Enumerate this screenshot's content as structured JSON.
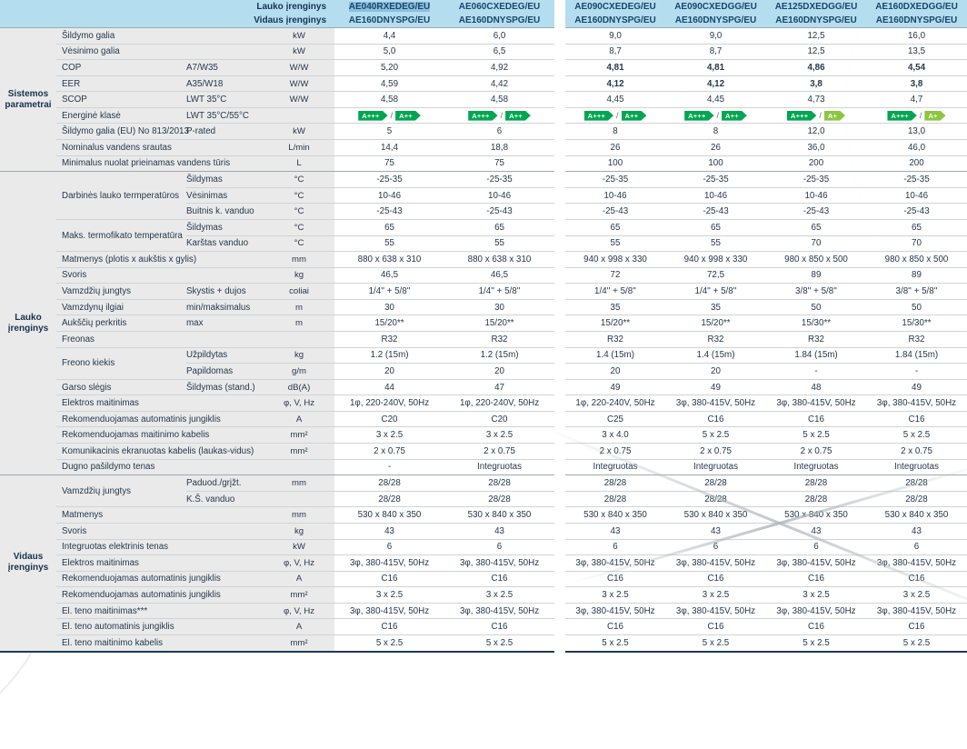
{
  "colors": {
    "header_bg": "#b5ddf0",
    "selected_model_bg": "#8cc0de",
    "label_bg": "#eaeaea",
    "text": "#22394f",
    "bottom_border": "#1d3a56",
    "energy": {
      "A+++": "#00a651",
      "A++": "#00a651",
      "A+": "#8cc63f"
    }
  },
  "header": {
    "outdoor_label": "Lauko įrenginys",
    "indoor_label": "Vidaus įrenginys",
    "models": [
      {
        "outdoor": "AE040RXEDEG/EU",
        "indoor": "AE160DNYSPG/EU",
        "selected": true
      },
      {
        "outdoor": "AE060CXEDEG/EU",
        "indoor": "AE160DNYSPG/EU"
      },
      {
        "outdoor": "AE090CXEDEG/EU",
        "indoor": "AE160DNYSPG/EU"
      },
      {
        "outdoor": "AE090CXEDGG/EU",
        "indoor": "AE160DNYSPG/EU"
      },
      {
        "outdoor": "AE125DXEDGG/EU",
        "indoor": "AE160DNYSPG/EU"
      },
      {
        "outdoor": "AE160DXEDGG/EU",
        "indoor": "AE160DNYSPG/EU"
      }
    ]
  },
  "sections": [
    {
      "label": "Sistemos parametrai",
      "rows": [
        {
          "label": "Šildymo galia",
          "unit": "kW",
          "values": [
            "4,4",
            "6,0",
            "9,0",
            "9,0",
            "12,5",
            "16,0"
          ]
        },
        {
          "label": "Vėsinimo galia",
          "unit": "kW",
          "values": [
            "5,0",
            "6,5",
            "8,7",
            "8,7",
            "12,5",
            "13,5"
          ]
        },
        {
          "label": "COP",
          "sub": "A7/W35",
          "unit": "W/W",
          "values": [
            "5,20",
            "4,92",
            "4,81",
            "4,81",
            "4,86",
            "4,54"
          ],
          "bold": [
            0,
            0,
            1,
            1,
            1,
            1
          ]
        },
        {
          "label": "EER",
          "sub": "A35/W18",
          "unit": "W/W",
          "values": [
            "4,59",
            "4,42",
            "4,12",
            "4,12",
            "3,8",
            "3,8"
          ],
          "bold": [
            0,
            0,
            1,
            1,
            1,
            1
          ]
        },
        {
          "label": "SCOP",
          "sub": "LWT 35°C",
          "unit": "W/W",
          "values": [
            "4,58",
            "4,58",
            "4,45",
            "4,45",
            "4,73",
            "4,7"
          ]
        },
        {
          "label": "Energinė klasė",
          "sub": "LWT 35°C/55°C",
          "unit": "",
          "energy": true,
          "values": [
            "A+++/A++",
            "A+++/A++",
            "A+++/A++",
            "A+++/A++",
            "A+++/A+",
            "A+++/A+"
          ]
        },
        {
          "label": "Šildymo galia (EU) No 813/2013",
          "sub": "P-rated",
          "unit": "kW",
          "values": [
            "5",
            "6",
            "8",
            "8",
            "12,0",
            "13,0"
          ]
        },
        {
          "label": "Nominalus vandens srautas",
          "unit": "L/min",
          "values": [
            "14,4",
            "18,8",
            "26",
            "26",
            "36,0",
            "46,0"
          ]
        },
        {
          "label": "Minimalus nuolat prieinamas vandens tūris",
          "unit": "L",
          "values": [
            "75",
            "75",
            "100",
            "100",
            "200",
            "200"
          ]
        }
      ]
    },
    {
      "label": "Lauko įrenginys",
      "rows": [
        {
          "label": "Darbinės lauko termperatūros",
          "group": 3,
          "sub": "Šildymas",
          "unit": "°C",
          "values": [
            "-25-35",
            "-25-35",
            "-25-35",
            "-25-35",
            "-25-35",
            "-25-35"
          ]
        },
        {
          "cont": true,
          "sub": "Vėsinimas",
          "unit": "°C",
          "values": [
            "10-46",
            "10-46",
            "10-46",
            "10-46",
            "10-46",
            "10-46"
          ]
        },
        {
          "cont": true,
          "sub": "Buitnis k. vanduo",
          "unit": "°C",
          "values": [
            "-25-43",
            "-25-43",
            "-25-43",
            "-25-43",
            "-25-43",
            "-25-43"
          ]
        },
        {
          "label": "Maks. termofikato temperatūra",
          "group": 2,
          "sub": "Šildymas",
          "unit": "°C",
          "values": [
            "65",
            "65",
            "65",
            "65",
            "65",
            "65"
          ]
        },
        {
          "cont": true,
          "sub": "Karštas vanduo",
          "unit": "°C",
          "values": [
            "55",
            "55",
            "55",
            "55",
            "70",
            "70"
          ]
        },
        {
          "label": "Matmenys (plotis x aukštis x gylis)",
          "unit": "mm",
          "values": [
            "880 x 638 x 310",
            "880 x 638 x 310",
            "940 x 998 x 330",
            "940 x 998 x 330",
            "980 x 850 x 500",
            "980 x 850 x 500"
          ]
        },
        {
          "label": "Svoris",
          "unit": "kg",
          "values": [
            "46,5",
            "46,5",
            "72",
            "72,5",
            "89",
            "89"
          ]
        },
        {
          "label": "Vamzdžių jungtys",
          "sub": "Skystis + dujos",
          "unit": "coliai",
          "values": [
            "1/4'' + 5/8''",
            "1/4'' + 5/8''",
            "1/4'' + 5/8''",
            "1/4'' + 5/8''",
            "3/8'' + 5/8''",
            "3/8'' + 5/8''"
          ]
        },
        {
          "label": "Vamzdynų ilgiai",
          "sub": "min/maksimalus",
          "unit": "m",
          "values": [
            "30",
            "30",
            "35",
            "35",
            "50",
            "50"
          ]
        },
        {
          "label": "Aukščių perkritis",
          "sub": "max",
          "unit": "m",
          "values": [
            "15/20**",
            "15/20**",
            "15/20**",
            "15/20**",
            "15/30**",
            "15/30**"
          ]
        },
        {
          "label": "Freonas",
          "unit": "",
          "values": [
            "R32",
            "R32",
            "R32",
            "R32",
            "R32",
            "R32"
          ]
        },
        {
          "label": "Freono kiekis",
          "group": 2,
          "sub": "Užpildytas",
          "unit": "kg",
          "values": [
            "1.2 (15m)",
            "1.2 (15m)",
            "1.4 (15m)",
            "1.4 (15m)",
            "1.84 (15m)",
            "1.84 (15m)"
          ]
        },
        {
          "cont": true,
          "sub": "Papildomas",
          "unit": "g/m",
          "values": [
            "20",
            "20",
            "20",
            "20",
            "-",
            "-"
          ]
        },
        {
          "label": "Garso slėgis",
          "sub": "Šildymas (stand.)",
          "unit": "dB(A)",
          "values": [
            "44",
            "47",
            "49",
            "49",
            "48",
            "49"
          ]
        },
        {
          "label": "Elektros maitinimas",
          "unit": "φ, V, Hz",
          "values": [
            "1φ, 220-240V, 50Hz",
            "1φ, 220-240V, 50Hz",
            "1φ, 220-240V, 50Hz",
            "3φ, 380-415V, 50Hz",
            "3φ, 380-415V, 50Hz",
            "3φ, 380-415V, 50Hz"
          ]
        },
        {
          "label": "Rekomenduojamas automatinis jungiklis",
          "unit": "A",
          "values": [
            "C20",
            "C20",
            "C25",
            "C16",
            "C16",
            "C16"
          ]
        },
        {
          "label": "Rekomenduojamas maitinimo kabelis",
          "unit": "mm²",
          "values": [
            "3 x 2.5",
            "3 x 2.5",
            "3 x 4.0",
            "5 x 2.5",
            "5 x 2.5",
            "5 x 2.5"
          ]
        },
        {
          "label": "Komunikacinis ekranuotas kabelis (laukas-vidus)",
          "unit": "mm²",
          "values": [
            "2 x 0.75",
            "2 x 0.75",
            "2 x 0.75",
            "2 x 0.75",
            "2 x 0.75",
            "2 x 0.75"
          ]
        },
        {
          "label": "Dugno pašildymo tenas",
          "unit": "",
          "values": [
            "-",
            "Integruotas",
            "Integruotas",
            "Integruotas",
            "Integruotas",
            "Integruotas"
          ]
        }
      ]
    },
    {
      "label": "Vidaus įrenginys",
      "rows": [
        {
          "label": "Vamzdžių jungtys",
          "group": 2,
          "sub": "Paduod./grįžt.",
          "unit": "mm",
          "values": [
            "28/28",
            "28/28",
            "28/28",
            "28/28",
            "28/28",
            "28/28"
          ]
        },
        {
          "cont": true,
          "sub": "K.Š. vanduo",
          "unit": "",
          "values": [
            "28/28",
            "28/28",
            "28/28",
            "28/28",
            "28/28",
            "28/28"
          ]
        },
        {
          "label": "Matmenys",
          "unit": "mm",
          "values": [
            "530 x 840 x 350",
            "530 x 840 x 350",
            "530 x 840 x 350",
            "530 x 840 x 350",
            "530 x 840 x 350",
            "530 x 840 x 350"
          ]
        },
        {
          "label": "Svoris",
          "unit": "kg",
          "values": [
            "43",
            "43",
            "43",
            "43",
            "43",
            "43"
          ]
        },
        {
          "label": "Integruotas elektrinis tenas",
          "unit": "kW",
          "values": [
            "6",
            "6",
            "6",
            "6",
            "6",
            "6"
          ]
        },
        {
          "label": "Elektros maitinimas",
          "unit": "φ, V, Hz",
          "values": [
            "3φ, 380-415V, 50Hz",
            "3φ, 380-415V, 50Hz",
            "3φ, 380-415V, 50Hz",
            "3φ, 380-415V, 50Hz",
            "3φ, 380-415V, 50Hz",
            "3φ, 380-415V, 50Hz"
          ]
        },
        {
          "label": "Rekomenduojamas automatinis jungiklis",
          "unit": "A",
          "values": [
            "C16",
            "C16",
            "C16",
            "C16",
            "C16",
            "C16"
          ]
        },
        {
          "label": "Rekomenduojamas automatinis jungiklis",
          "unit": "mm²",
          "values": [
            "3 x 2.5",
            "3 x 2.5",
            "3 x 2.5",
            "3 x 2.5",
            "3 x 2.5",
            "3 x 2.5"
          ]
        },
        {
          "label": "El. teno maitinimas***",
          "unit": "φ, V, Hz",
          "values": [
            "3φ, 380-415V, 50Hz",
            "3φ, 380-415V, 50Hz",
            "3φ, 380-415V, 50Hz",
            "3φ, 380-415V, 50Hz",
            "3φ, 380-415V, 50Hz",
            "3φ, 380-415V, 50Hz"
          ]
        },
        {
          "label": "El. teno automatinis jungiklis",
          "unit": "A",
          "values": [
            "C16",
            "C16",
            "C16",
            "C16",
            "C16",
            "C16"
          ]
        },
        {
          "label": "El. teno maitinimo kabelis",
          "unit": "mm²",
          "values": [
            "5 x 2.5",
            "5 x 2.5",
            "5 x 2.5",
            "5 x 2.5",
            "5 x 2.5",
            "5 x 2.5"
          ]
        }
      ]
    }
  ]
}
